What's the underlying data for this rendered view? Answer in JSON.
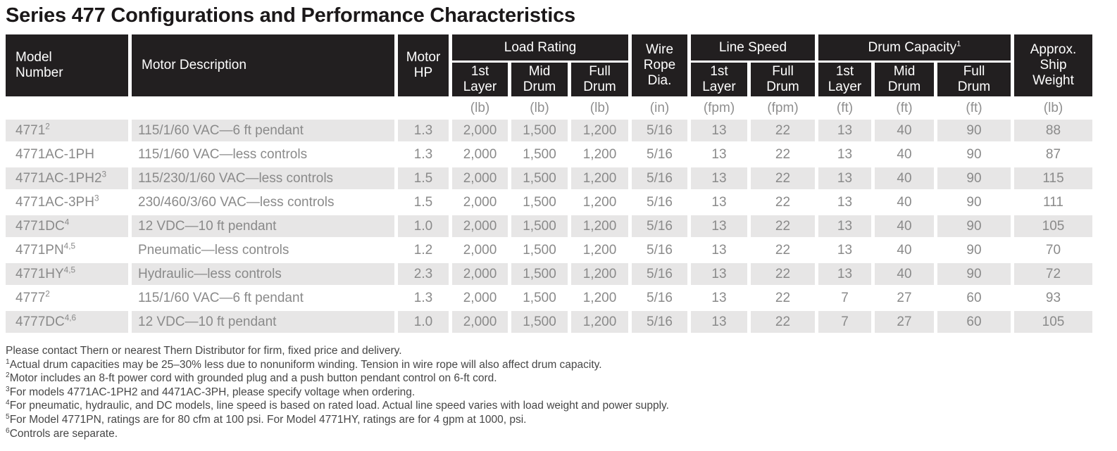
{
  "title": "Series 477 Configurations and Performance Characteristics",
  "colors": {
    "header_bg": "#221f20",
    "header_text": "#ffffff",
    "stripe_bg": "#e7e6e6",
    "data_text": "#8a8a8a",
    "units_text": "#8f8f8f",
    "footnote_text": "#464646",
    "title_text": "#1b1819"
  },
  "table": {
    "header": {
      "model_number": "Model\nNumber",
      "motor_description": "Motor Description",
      "motor_hp": "Motor\nHP",
      "load_rating": "Load Rating",
      "wire_rope_dia": "Wire\nRope\nDia.",
      "line_speed": "Line Speed",
      "drum_capacity": "Drum Capacity",
      "drum_capacity_sup": "1",
      "ship_weight": "Approx.\nShip\nWeight",
      "sub_labels": [
        "1st\nLayer",
        "Mid\nDrum",
        "Full\nDrum",
        "1st\nLayer",
        "Full\nDrum",
        "1st\nLayer",
        "Mid\nDrum",
        "Full\nDrum"
      ]
    },
    "units": [
      "(lb)",
      "(lb)",
      "(lb)",
      "(in)",
      "(fpm)",
      "(fpm)",
      "(ft)",
      "(ft)",
      "(ft)",
      "(lb)"
    ],
    "rows": [
      {
        "model": "4771",
        "model_sup": "2",
        "description": "115/1/60 VAC—6 ft pendant",
        "motor_hp": "1.3",
        "load_rating": [
          "2,000",
          "1,500",
          "1,200"
        ],
        "wire_rope_dia": "5/16",
        "line_speed": [
          "13",
          "22"
        ],
        "drum_capacity": [
          "13",
          "40",
          "90"
        ],
        "ship_weight": "88"
      },
      {
        "model": "4771AC-1PH",
        "model_sup": "",
        "description": "115/1/60 VAC—less controls",
        "motor_hp": "1.3",
        "load_rating": [
          "2,000",
          "1,500",
          "1,200"
        ],
        "wire_rope_dia": "5/16",
        "line_speed": [
          "13",
          "22"
        ],
        "drum_capacity": [
          "13",
          "40",
          "90"
        ],
        "ship_weight": "87"
      },
      {
        "model": "4771AC-1PH2",
        "model_sup": "3",
        "description": "115/230/1/60 VAC—less controls",
        "motor_hp": "1.5",
        "load_rating": [
          "2,000",
          "1,500",
          "1,200"
        ],
        "wire_rope_dia": "5/16",
        "line_speed": [
          "13",
          "22"
        ],
        "drum_capacity": [
          "13",
          "40",
          "90"
        ],
        "ship_weight": "115"
      },
      {
        "model": "4771AC-3PH",
        "model_sup": "3",
        "description": "230/460/3/60 VAC—less controls",
        "motor_hp": "1.5",
        "load_rating": [
          "2,000",
          "1,500",
          "1,200"
        ],
        "wire_rope_dia": "5/16",
        "line_speed": [
          "13",
          "22"
        ],
        "drum_capacity": [
          "13",
          "40",
          "90"
        ],
        "ship_weight": "111"
      },
      {
        "model": "4771DC",
        "model_sup": "4",
        "description": "12 VDC—10 ft pendant",
        "motor_hp": "1.0",
        "load_rating": [
          "2,000",
          "1,500",
          "1,200"
        ],
        "wire_rope_dia": "5/16",
        "line_speed": [
          "13",
          "22"
        ],
        "drum_capacity": [
          "13",
          "40",
          "90"
        ],
        "ship_weight": "105"
      },
      {
        "model": "4771PN",
        "model_sup": "4,5",
        "description": "Pneumatic—less controls",
        "motor_hp": "1.2",
        "load_rating": [
          "2,000",
          "1,500",
          "1,200"
        ],
        "wire_rope_dia": "5/16",
        "line_speed": [
          "13",
          "22"
        ],
        "drum_capacity": [
          "13",
          "40",
          "90"
        ],
        "ship_weight": "70"
      },
      {
        "model": "4771HY",
        "model_sup": "4,5",
        "description": "Hydraulic—less controls",
        "motor_hp": "2.3",
        "load_rating": [
          "2,000",
          "1,500",
          "1,200"
        ],
        "wire_rope_dia": "5/16",
        "line_speed": [
          "13",
          "22"
        ],
        "drum_capacity": [
          "13",
          "40",
          "90"
        ],
        "ship_weight": "72"
      },
      {
        "model": "4777",
        "model_sup": "2",
        "description": "115/1/60 VAC—6 ft pendant",
        "motor_hp": "1.3",
        "load_rating": [
          "2,000",
          "1,500",
          "1,200"
        ],
        "wire_rope_dia": "5/16",
        "line_speed": [
          "13",
          "22"
        ],
        "drum_capacity": [
          "7",
          "27",
          "60"
        ],
        "ship_weight": "93"
      },
      {
        "model": "4777DC",
        "model_sup": "4,6",
        "description": "12 VDC—10 ft pendant",
        "motor_hp": "1.0",
        "load_rating": [
          "2,000",
          "1,500",
          "1,200"
        ],
        "wire_rope_dia": "5/16",
        "line_speed": [
          "13",
          "22"
        ],
        "drum_capacity": [
          "7",
          "27",
          "60"
        ],
        "ship_weight": "105"
      }
    ]
  },
  "footnotes": [
    {
      "sup": "",
      "text": "Please contact Thern or nearest Thern Distributor for firm, fixed price and delivery."
    },
    {
      "sup": "1",
      "text": "Actual drum capacities may be 25–30% less due to nonuniform winding.  Tension in wire rope will also affect drum capacity."
    },
    {
      "sup": "2",
      "text": "Motor includes an 8-ft power cord with grounded plug and a push button pendant control on 6-ft cord."
    },
    {
      "sup": "3",
      "text": "For models 4771AC-1PH2 and 4471AC-3PH, please specify voltage when ordering."
    },
    {
      "sup": "4",
      "text": "For pneumatic, hydraulic, and DC models, line speed is based on rated load.  Actual line speed varies with load weight and power supply."
    },
    {
      "sup": "5",
      "text": "For Model 4771PN, ratings are for 80 cfm at 100 psi.  For Model 4771HY, ratings are for 4 gpm at 1000, psi."
    },
    {
      "sup": "6",
      "text": "Controls are separate."
    }
  ]
}
